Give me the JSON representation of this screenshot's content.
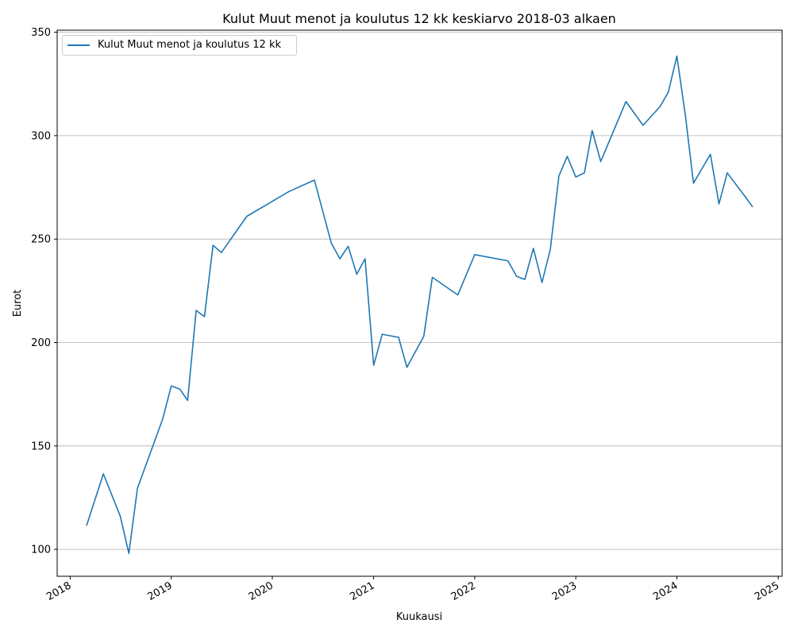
{
  "chart_data": {
    "type": "line",
    "title": "Kulut Muut menot ja koulutus 12 kk keskiarvo 2018-03 alkaen",
    "xlabel": "Kuukausi",
    "ylabel": "Eurot",
    "x_ticks": [
      "2018",
      "2019",
      "2020",
      "2021",
      "2022",
      "2023",
      "2024",
      "2025"
    ],
    "y_ticks": [
      100,
      150,
      200,
      250,
      300,
      350
    ],
    "xlim": [
      "2017-11-15",
      "2025-01-15"
    ],
    "ylim": [
      87,
      351
    ],
    "grid": "horizontal",
    "legend_position": "top-left",
    "series": [
      {
        "name": "Kulut Muut menot ja koulutus 12 kk",
        "color": "#1f77b4",
        "points": [
          [
            "2018-03-01",
            111.5
          ],
          [
            "2018-05-01",
            136.5
          ],
          [
            "2018-07-01",
            116.0
          ],
          [
            "2018-08-01",
            98.0
          ],
          [
            "2018-09-01",
            129.5
          ],
          [
            "2018-12-01",
            163.0
          ],
          [
            "2019-01-01",
            179.0
          ],
          [
            "2019-02-01",
            177.5
          ],
          [
            "2019-03-01",
            172.0
          ],
          [
            "2019-04-01",
            215.5
          ],
          [
            "2019-05-01",
            212.5
          ],
          [
            "2019-06-01",
            247.0
          ],
          [
            "2019-07-01",
            243.5
          ],
          [
            "2019-10-01",
            261.0
          ],
          [
            "2020-03-01",
            273.0
          ],
          [
            "2020-06-01",
            278.5
          ],
          [
            "2020-08-01",
            248.0
          ],
          [
            "2020-09-01",
            240.5
          ],
          [
            "2020-10-01",
            246.5
          ],
          [
            "2020-11-01",
            233.0
          ],
          [
            "2020-12-01",
            240.5
          ],
          [
            "2021-01-01",
            189.0
          ],
          [
            "2021-02-01",
            204.0
          ],
          [
            "2021-04-01",
            202.5
          ],
          [
            "2021-05-01",
            188.0
          ],
          [
            "2021-07-01",
            203.0
          ],
          [
            "2021-08-01",
            231.5
          ],
          [
            "2021-11-01",
            223.0
          ],
          [
            "2022-01-01",
            242.5
          ],
          [
            "2022-05-01",
            239.5
          ],
          [
            "2022-06-01",
            232.0
          ],
          [
            "2022-07-01",
            230.5
          ],
          [
            "2022-08-01",
            245.5
          ],
          [
            "2022-09-01",
            229.0
          ],
          [
            "2022-10-01",
            245.0
          ],
          [
            "2022-11-01",
            280.5
          ],
          [
            "2022-12-01",
            290.0
          ],
          [
            "2023-01-01",
            280.0
          ],
          [
            "2023-02-01",
            282.0
          ],
          [
            "2023-03-01",
            302.5
          ],
          [
            "2023-04-01",
            287.5
          ],
          [
            "2023-07-01",
            316.5
          ],
          [
            "2023-09-01",
            305.0
          ],
          [
            "2023-11-01",
            314.0
          ],
          [
            "2023-12-01",
            321.0
          ],
          [
            "2024-01-01",
            338.5
          ],
          [
            "2024-02-01",
            309.5
          ],
          [
            "2024-03-01",
            277.0
          ],
          [
            "2024-05-01",
            291.0
          ],
          [
            "2024-06-01",
            267.0
          ],
          [
            "2024-07-01",
            282.0
          ],
          [
            "2024-09-01",
            271.0
          ],
          [
            "2024-10-01",
            265.5
          ]
        ]
      }
    ]
  }
}
